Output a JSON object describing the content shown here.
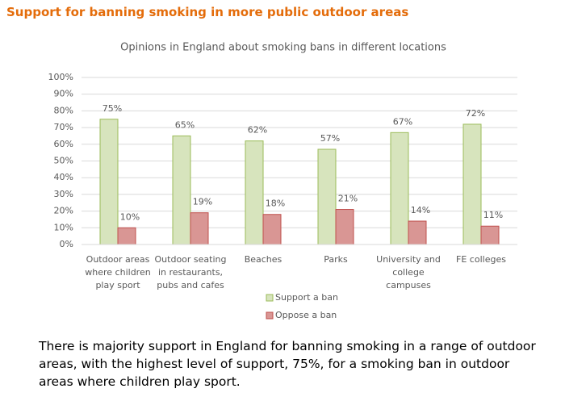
{
  "heading": "Support for banning smoking in more public outdoor areas",
  "chart_data": {
    "type": "bar",
    "title": "Opinions in England about smoking bans in different locations",
    "categories": [
      "Outdoor areas where children play sport",
      "Outdoor seating in restaurants, pubs and cafes",
      "Beaches",
      "Parks",
      "University and college campuses",
      "FE colleges"
    ],
    "series": [
      {
        "name": "Support a ban",
        "color": "#d7e4bd",
        "edge": "#9bbb59",
        "values": [
          75,
          65,
          62,
          57,
          67,
          72
        ],
        "value_labels": [
          "75%",
          "65%",
          "62%",
          "57%",
          "67%",
          "72%"
        ]
      },
      {
        "name": "Oppose a ban",
        "color": "#d99694",
        "edge": "#c0504d",
        "values": [
          10,
          19,
          18,
          21,
          14,
          11
        ],
        "value_labels": [
          "10%",
          "19%",
          "18%",
          "21%",
          "14%",
          "11%"
        ]
      }
    ],
    "ylim": [
      0,
      100
    ],
    "yticks": [
      {
        "value": 0,
        "label": "0%"
      },
      {
        "value": 10,
        "label": "10%"
      },
      {
        "value": 20,
        "label": "20%"
      },
      {
        "value": 30,
        "label": "30%"
      },
      {
        "value": 40,
        "label": "40%"
      },
      {
        "value": 50,
        "label": "50%"
      },
      {
        "value": 60,
        "label": "60%"
      },
      {
        "value": 70,
        "label": "70%"
      },
      {
        "value": 80,
        "label": "80%"
      },
      {
        "value": 90,
        "label": "90%"
      },
      {
        "value": 100,
        "label": "100%"
      }
    ],
    "grid": true,
    "legend": "bottom"
  },
  "summary": "There is majority support in England for banning smoking in a range of outdoor areas, with the highest level of support, 75%, for a smoking ban in outdoor areas where children play sport."
}
